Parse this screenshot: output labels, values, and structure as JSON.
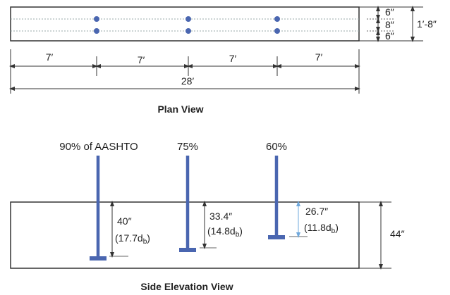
{
  "plan": {
    "title": "Plan View",
    "transverse_dims": [
      "6″",
      "8″",
      "6″"
    ],
    "width_label": "1′-8″",
    "segment_labels": [
      "7′",
      "7′",
      "7′",
      "7′"
    ],
    "total_label": "28′"
  },
  "elevation": {
    "title": "Side Elevation View",
    "height_label": "44″",
    "bars": [
      {
        "label": "90% of AASHTO",
        "embed": "40″",
        "embed_db_prefix": "(17.7d",
        "embed_db_sub": "b",
        "embed_db_suffix": ")"
      },
      {
        "label": "75%",
        "embed": "33.4″",
        "embed_db_prefix": "(14.8d",
        "embed_db_sub": "b",
        "embed_db_suffix": ")"
      },
      {
        "label": "60%",
        "embed": "26.7″",
        "embed_db_prefix": "(11.8d",
        "embed_db_sub": "b",
        "embed_db_suffix": ")"
      }
    ]
  },
  "colors": {
    "bar": "#4a66b0",
    "dim_line": "#333333",
    "dim_light": "#6fa8dc",
    "outline": "#333333"
  }
}
